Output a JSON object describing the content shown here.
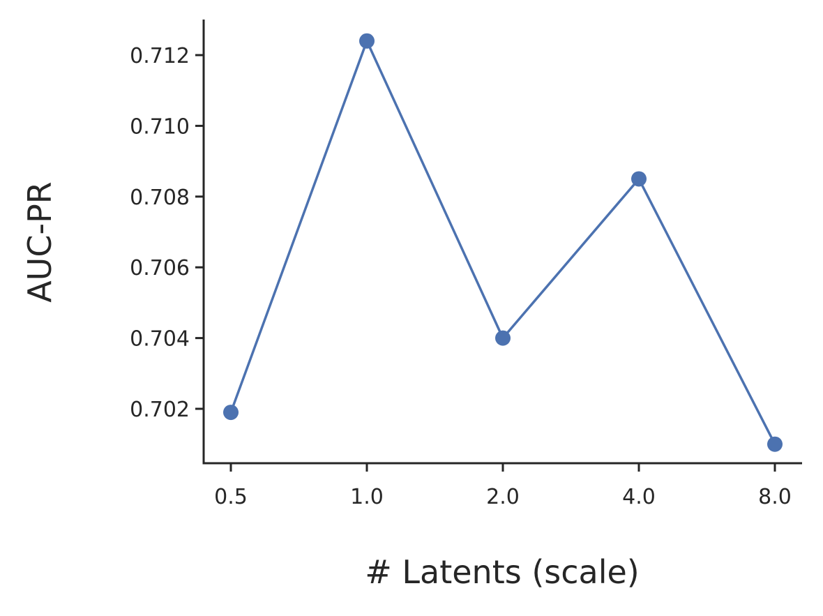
{
  "chart_data": {
    "type": "line",
    "categories": [
      "0.5",
      "1.0",
      "2.0",
      "4.0",
      "8.0"
    ],
    "series": [
      {
        "values": [
          0.7019,
          0.7124,
          0.704,
          0.7085,
          0.701
        ]
      }
    ],
    "xlabel": "# Latents (scale)",
    "ylabel": "AUC-PR",
    "yticks": [
      "0.702",
      "0.704",
      "0.706",
      "0.708",
      "0.710",
      "0.712"
    ],
    "ylim": [
      0.7004,
      0.713
    ],
    "x_scale": "categorical",
    "grid": false,
    "legend": "none",
    "colors": {
      "line": "#4c72b0",
      "axis": "#262626",
      "text": "#262626"
    }
  }
}
